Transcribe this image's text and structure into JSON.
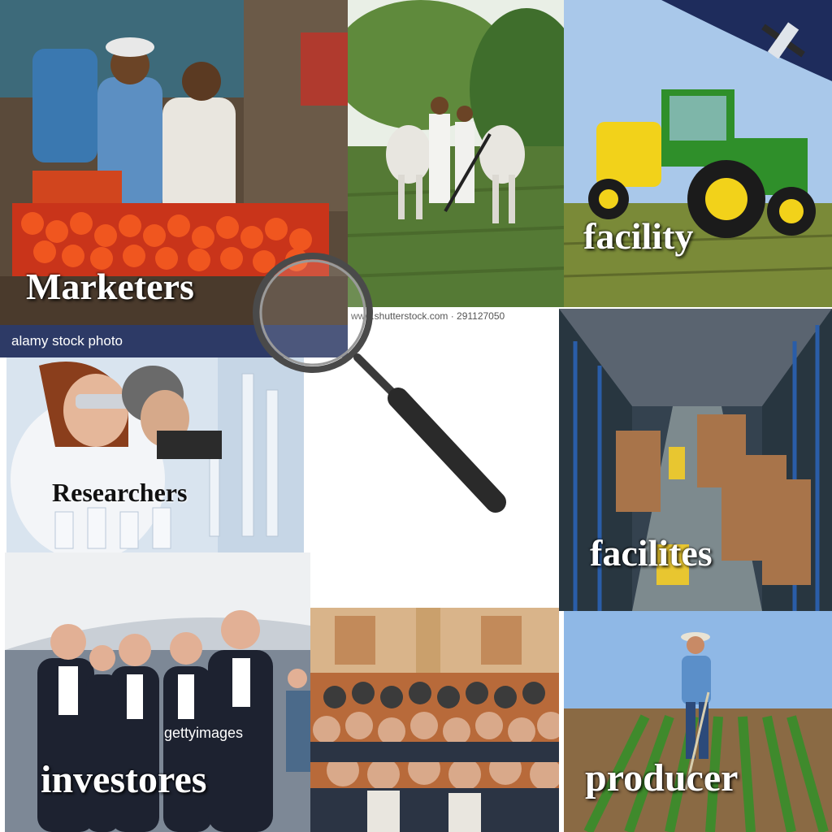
{
  "tiles": {
    "marketers": {
      "label": "Marketers",
      "watermark": "alamy stock photo"
    },
    "ploughing": {
      "watermark": "www.shutterstock.com · 291127050"
    },
    "tractor": {
      "label": "facility"
    },
    "researchers": {
      "label": "Researchers"
    },
    "warehouse": {
      "label": "facilites"
    },
    "investors": {
      "label": "investores",
      "watermark": "gettyimages"
    },
    "audience": {},
    "producer": {
      "label": "producer"
    }
  },
  "icons": {
    "center": "magnifying-glass-icon"
  },
  "colors": {
    "tomato": "#e2461b",
    "tractor_green": "#2f8f2a",
    "tractor_yellow": "#f2d21a",
    "sky": "#8fb8e6"
  }
}
